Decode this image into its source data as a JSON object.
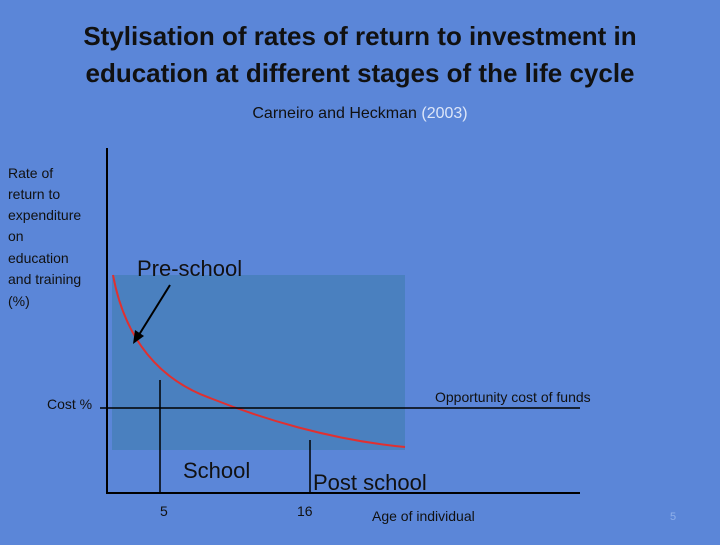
{
  "header": {
    "title_lines": [
      "Stylisation of rates of return to investment in",
      "education at different stages of the life cycle"
    ],
    "subtitle": {
      "authors": "Carneiro and Heckman",
      "year": "(2003)"
    }
  },
  "diagram": {
    "y_axis_label_lines": [
      "Rate of",
      "return to",
      "expenditure",
      "on",
      "education",
      "and training",
      "(%)"
    ],
    "curve_label": "Pre-school",
    "cost_label": "Cost %",
    "cost_line_label": "Opportunity cost of funds",
    "stage_labels": [
      "School",
      "Post school"
    ],
    "age_ticks": [
      "5",
      "16"
    ],
    "x_axis_label": "Age of individual"
  },
  "footer": {
    "page_number": "5"
  }
}
